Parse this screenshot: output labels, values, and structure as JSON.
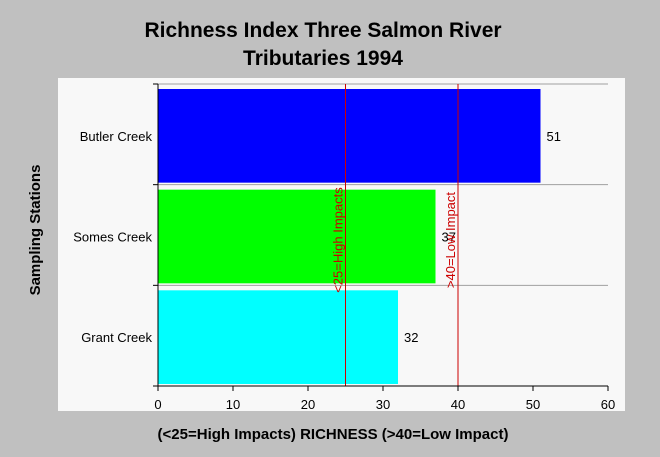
{
  "chart_data": {
    "type": "bar",
    "orientation": "horizontal",
    "title_lines": [
      "Richness Index Three Salmon River",
      "Tributaries 1994"
    ],
    "xlabel": "(<25=High Impacts)  RICHNESS (>40=Low Impact)",
    "ylabel": "Sampling Stations",
    "categories": [
      "Butler Creek",
      "Somes Creek",
      "Grant Creek"
    ],
    "values": [
      51,
      37,
      32
    ],
    "value_labels": [
      "51",
      "37",
      "32"
    ],
    "colors": [
      "#0000ff",
      "#00ff00",
      "#00ffff"
    ],
    "xlim": [
      0,
      60
    ],
    "xticks": [
      0,
      10,
      20,
      30,
      40,
      50,
      60
    ],
    "xtick_labels": [
      "0",
      "10",
      "20",
      "30",
      "40",
      "50",
      "60"
    ],
    "grid": "horizontal",
    "reference_lines": [
      {
        "x": 25,
        "label": "<25=High Impacts",
        "color": "#cc0000"
      },
      {
        "x": 40,
        "label": ">40=Low Impact",
        "color": "#cc0000"
      }
    ],
    "plot_background": "#f8f8f8",
    "page_background": "#c0c0c0"
  }
}
